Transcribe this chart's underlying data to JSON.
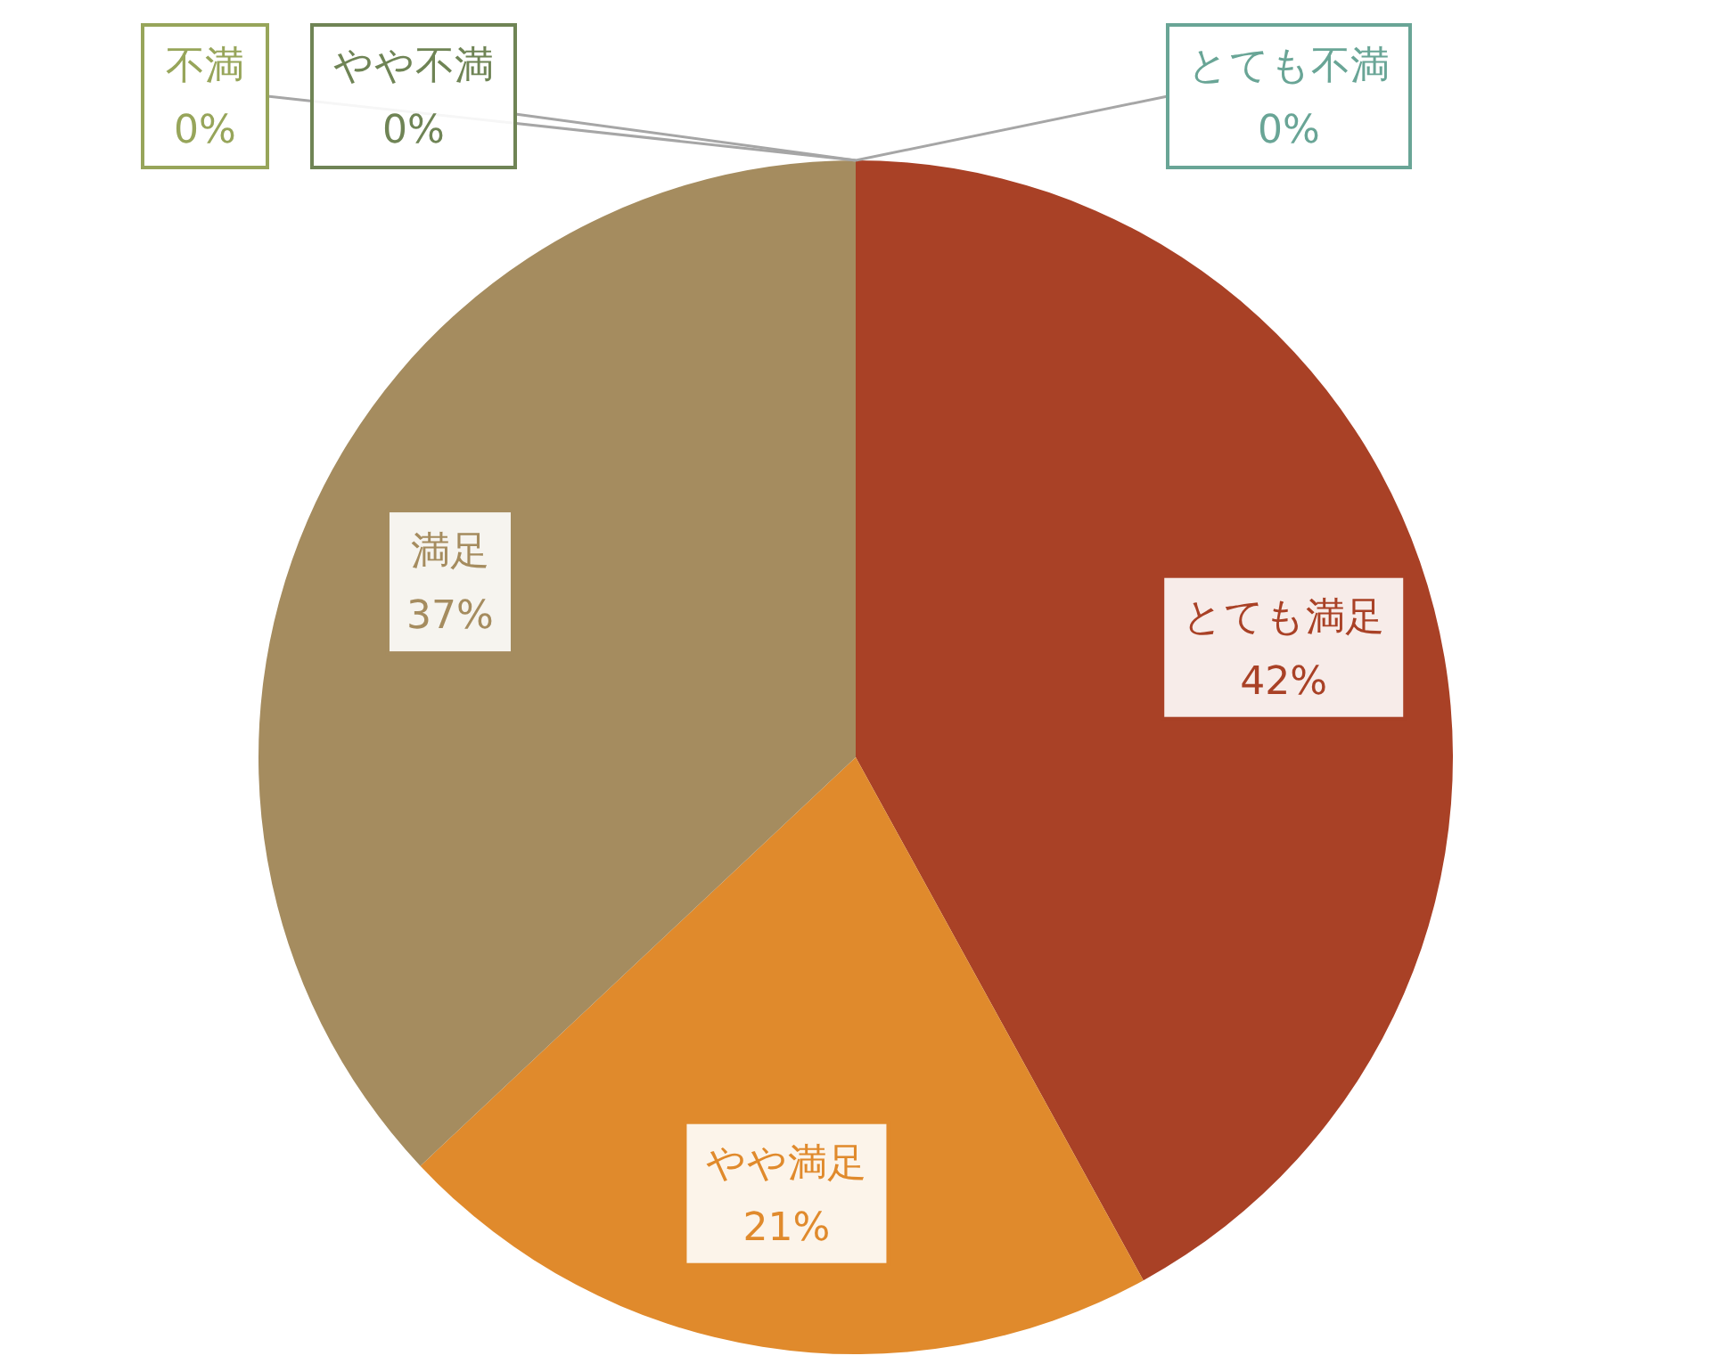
{
  "chart_data": {
    "type": "pie",
    "categories": [
      "とても満足",
      "やや満足",
      "満足",
      "不満",
      "やや不満",
      "とても不満"
    ],
    "values": [
      42,
      21,
      37,
      0,
      0,
      0
    ],
    "colors": [
      "#a94126",
      "#e08a2c",
      "#a58c5f",
      "#97a55a",
      "#6f8455",
      "#69a596"
    ],
    "value_labels": [
      "42%",
      "21%",
      "37%",
      "0%",
      "0%",
      "0%"
    ]
  }
}
